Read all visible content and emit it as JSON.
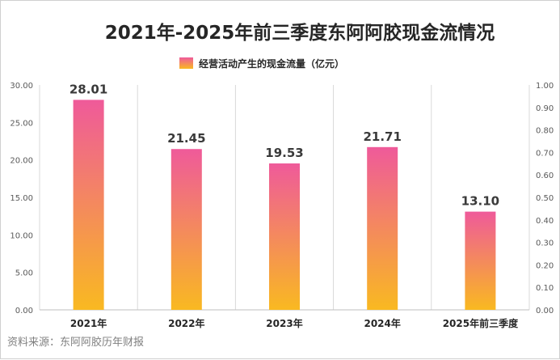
{
  "chart_data": {
    "type": "bar",
    "title": "2021年-2025年前三季度东阿阿胶现金流情况",
    "legend": "经营活动产生的现金流量（亿元）",
    "categories": [
      "2021年",
      "2022年",
      "2023年",
      "2024年",
      "2025年前三季度"
    ],
    "series": [
      {
        "name": "经营活动产生的现金流量（亿元）",
        "values": [
          28.01,
          21.45,
          19.53,
          21.71,
          13.1
        ]
      }
    ],
    "value_labels": [
      "28.01",
      "21.45",
      "19.53",
      "21.71",
      "13.10"
    ],
    "ylim": [
      0,
      30
    ],
    "y_ticks": [
      "0.00",
      "5.00",
      "10.00",
      "15.00",
      "20.00",
      "25.00",
      "30.00"
    ],
    "y2lim": [
      0,
      1
    ],
    "y2_ticks": [
      "0.00",
      "0.10",
      "0.20",
      "0.30",
      "0.40",
      "0.50",
      "0.60",
      "0.70",
      "0.80",
      "0.90",
      "1.00"
    ],
    "grid": "vertical category separators",
    "colors": {
      "bar_top": "#ef5a9a",
      "bar_bottom": "#f9b921",
      "axis": "#bfbfbf",
      "grid": "#d9d9d9"
    }
  },
  "source": "资料来源：东阿阿胶历年财报"
}
